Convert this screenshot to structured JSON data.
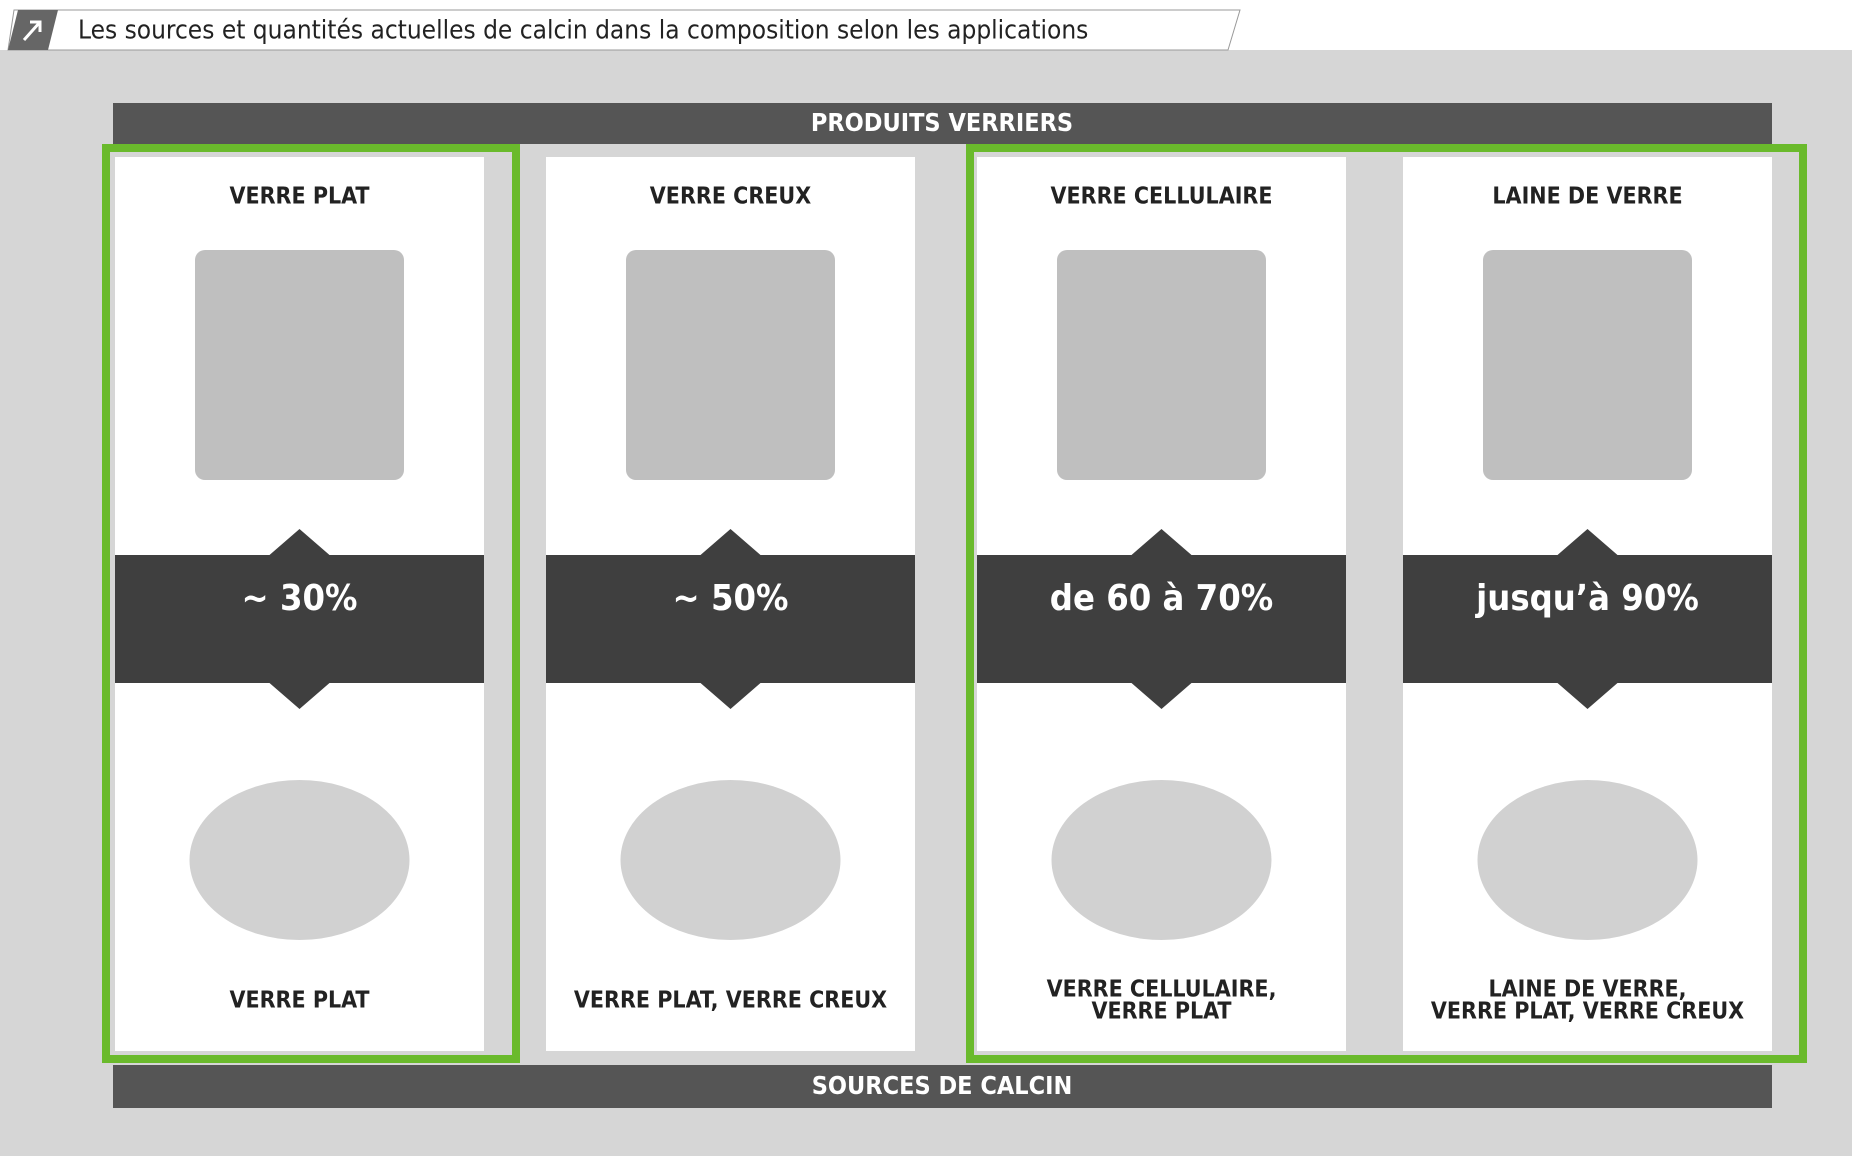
{
  "title": "Les sources et quantités actuelles de calcin dans la composition selon les applications",
  "header": "PRODUITS VERRIERS",
  "footer": "SOURCES DE CALCIN",
  "columns": [
    {
      "product": "VERRE PLAT",
      "share": "~ 30%",
      "sources": [
        "VERRE PLAT"
      ]
    },
    {
      "product": "VERRE CREUX",
      "share": "~ 50%",
      "sources": [
        "VERRE PLAT, VERRE CREUX"
      ]
    },
    {
      "product": "VERRE CELLULAIRE",
      "share": "de 60 à 70%",
      "sources": [
        "VERRE CELLULAIRE,",
        "VERRE PLAT"
      ]
    },
    {
      "product": "LAINE DE VERRE",
      "share": "jusqu’à 90%",
      "sources": [
        "LAINE DE VERRE,",
        "VERRE PLAT, VERRE CREUX"
      ]
    }
  ]
}
